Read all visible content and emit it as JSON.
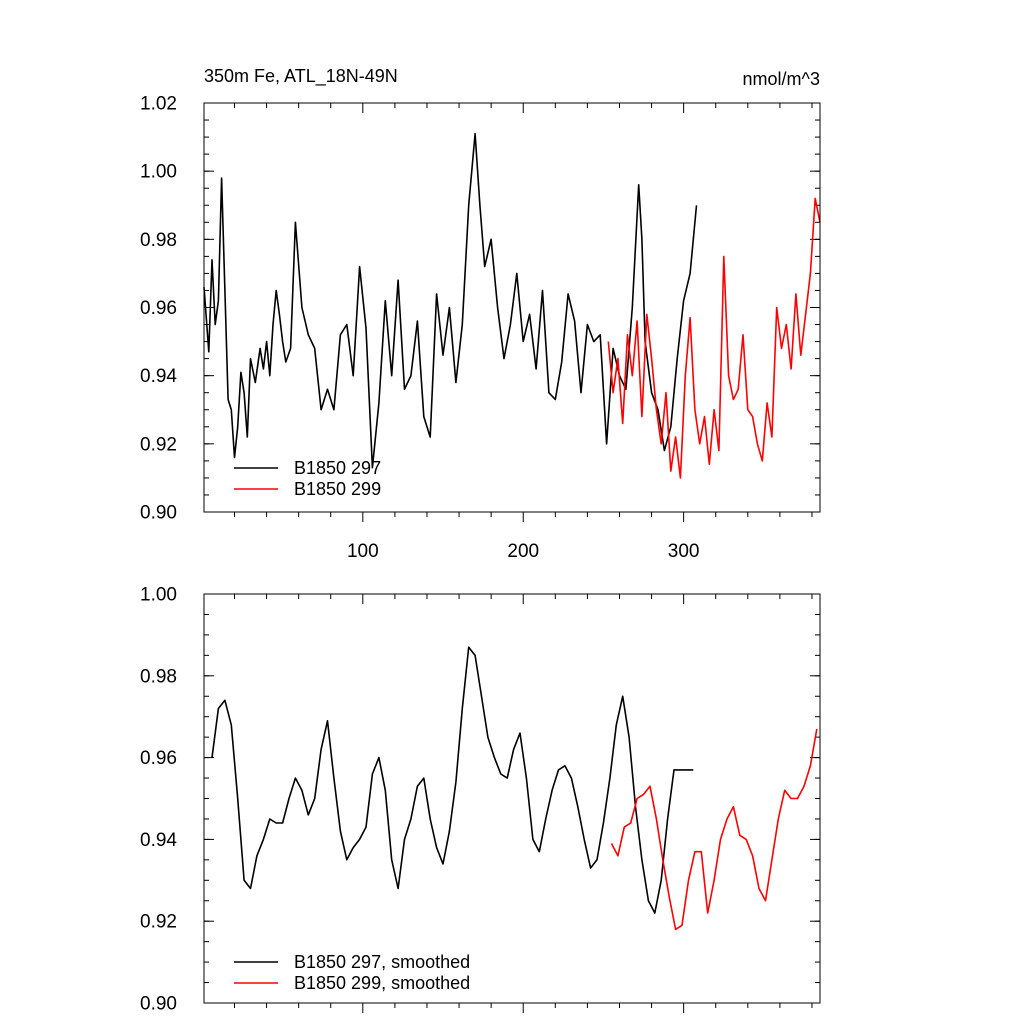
{
  "chart_data": [
    {
      "type": "line",
      "title": "350m Fe, ATL_18N-49N",
      "units": "nmol/m^3",
      "xlim": [
        1,
        385
      ],
      "ylim": [
        0.9,
        1.02
      ],
      "xticks": [
        100,
        200,
        300
      ],
      "yticks": [
        "0.90",
        "0.92",
        "0.94",
        "0.96",
        "0.98",
        "1.00",
        "1.02"
      ],
      "legend_position": "bottom-left",
      "series": [
        {
          "name": "B1850 297",
          "color": "#000000",
          "x": [
            1,
            4,
            6,
            8,
            10,
            12,
            14,
            16,
            18,
            20,
            22,
            24,
            26,
            28,
            30,
            33,
            36,
            38,
            40,
            42,
            44,
            46,
            48,
            50,
            52,
            55,
            58,
            62,
            66,
            70,
            74,
            78,
            82,
            86,
            90,
            94,
            98,
            102,
            106,
            110,
            114,
            118,
            122,
            126,
            130,
            134,
            138,
            142,
            146,
            150,
            154,
            158,
            162,
            166,
            170,
            173,
            176,
            180,
            184,
            188,
            192,
            196,
            200,
            204,
            208,
            212,
            216,
            220,
            224,
            228,
            232,
            236,
            240,
            244,
            248,
            252,
            256,
            260,
            264,
            268,
            272,
            274,
            276,
            280,
            284,
            288,
            292,
            296,
            300,
            304,
            308
          ],
          "y": [
            0.966,
            0.947,
            0.974,
            0.955,
            0.962,
            0.998,
            0.965,
            0.933,
            0.93,
            0.916,
            0.925,
            0.941,
            0.935,
            0.922,
            0.945,
            0.938,
            0.948,
            0.942,
            0.95,
            0.94,
            0.955,
            0.965,
            0.958,
            0.95,
            0.944,
            0.948,
            0.985,
            0.96,
            0.952,
            0.948,
            0.93,
            0.936,
            0.93,
            0.952,
            0.955,
            0.94,
            0.972,
            0.954,
            0.913,
            0.932,
            0.962,
            0.94,
            0.968,
            0.936,
            0.94,
            0.956,
            0.928,
            0.922,
            0.964,
            0.946,
            0.96,
            0.938,
            0.955,
            0.99,
            1.011,
            0.99,
            0.972,
            0.98,
            0.96,
            0.945,
            0.955,
            0.97,
            0.95,
            0.958,
            0.942,
            0.965,
            0.935,
            0.933,
            0.944,
            0.964,
            0.956,
            0.935,
            0.955,
            0.95,
            0.952,
            0.92,
            0.948,
            0.94,
            0.936,
            0.96,
            0.996,
            0.98,
            0.95,
            0.935,
            0.93,
            0.918,
            0.925,
            0.945,
            0.962,
            0.97,
            0.99
          ]
        },
        {
          "name": "B1850 299",
          "color": "#ff0000",
          "x": [
            253,
            256,
            259,
            262,
            265,
            268,
            271,
            274,
            277,
            280,
            283,
            286,
            289,
            292,
            295,
            298,
            301,
            304,
            307,
            310,
            313,
            316,
            319,
            322,
            325,
            328,
            331,
            334,
            337,
            340,
            343,
            346,
            349,
            352,
            355,
            358,
            361,
            364,
            367,
            370,
            373,
            376,
            379,
            382,
            385
          ],
          "y": [
            0.95,
            0.935,
            0.945,
            0.926,
            0.952,
            0.94,
            0.956,
            0.928,
            0.958,
            0.945,
            0.93,
            0.92,
            0.935,
            0.912,
            0.922,
            0.91,
            0.94,
            0.957,
            0.93,
            0.92,
            0.928,
            0.914,
            0.93,
            0.918,
            0.975,
            0.94,
            0.933,
            0.936,
            0.952,
            0.93,
            0.928,
            0.92,
            0.915,
            0.932,
            0.922,
            0.96,
            0.948,
            0.955,
            0.942,
            0.964,
            0.946,
            0.958,
            0.97,
            0.992,
            0.985
          ]
        }
      ]
    },
    {
      "type": "line",
      "xlim": [
        1,
        385
      ],
      "ylim": [
        0.9,
        1.0
      ],
      "yticks": [
        "0.90",
        "0.92",
        "0.94",
        "0.96",
        "0.98",
        "1.00"
      ],
      "legend_position": "bottom-left",
      "series": [
        {
          "name": "B1850 297, smoothed",
          "color": "#000000",
          "x": [
            6,
            10,
            14,
            18,
            22,
            26,
            30,
            34,
            38,
            42,
            46,
            50,
            54,
            58,
            62,
            66,
            70,
            74,
            78,
            82,
            86,
            90,
            94,
            98,
            102,
            106,
            110,
            114,
            118,
            122,
            126,
            130,
            134,
            138,
            142,
            146,
            150,
            154,
            158,
            162,
            166,
            170,
            174,
            178,
            182,
            186,
            190,
            194,
            198,
            202,
            206,
            210,
            214,
            218,
            222,
            226,
            230,
            234,
            238,
            242,
            246,
            250,
            254,
            258,
            262,
            266,
            270,
            274,
            278,
            282,
            286,
            290,
            294,
            298,
            302,
            306
          ],
          "y": [
            0.96,
            0.972,
            0.974,
            0.968,
            0.95,
            0.93,
            0.928,
            0.936,
            0.94,
            0.945,
            0.944,
            0.944,
            0.95,
            0.955,
            0.952,
            0.946,
            0.95,
            0.962,
            0.969,
            0.955,
            0.942,
            0.935,
            0.938,
            0.94,
            0.943,
            0.956,
            0.96,
            0.952,
            0.935,
            0.928,
            0.94,
            0.945,
            0.953,
            0.955,
            0.945,
            0.938,
            0.934,
            0.942,
            0.954,
            0.972,
            0.987,
            0.985,
            0.975,
            0.965,
            0.96,
            0.956,
            0.955,
            0.962,
            0.966,
            0.955,
            0.94,
            0.937,
            0.945,
            0.952,
            0.957,
            0.958,
            0.955,
            0.948,
            0.94,
            0.933,
            0.935,
            0.944,
            0.955,
            0.968,
            0.975,
            0.965,
            0.948,
            0.935,
            0.925,
            0.922,
            0.93,
            0.945,
            0.957,
            0.957,
            0.957,
            0.957
          ]
        },
        {
          "name": "B1850 299, smoothed",
          "color": "#ff0000",
          "x": [
            255,
            259,
            263,
            267,
            271,
            275,
            279,
            283,
            287,
            291,
            295,
            299,
            303,
            307,
            311,
            315,
            319,
            323,
            327,
            331,
            335,
            339,
            343,
            347,
            351,
            355,
            359,
            363,
            367,
            371,
            375,
            379,
            383
          ],
          "y": [
            0.939,
            0.936,
            0.943,
            0.944,
            0.95,
            0.951,
            0.953,
            0.945,
            0.935,
            0.926,
            0.918,
            0.919,
            0.93,
            0.937,
            0.937,
            0.922,
            0.93,
            0.94,
            0.945,
            0.948,
            0.941,
            0.94,
            0.936,
            0.928,
            0.925,
            0.935,
            0.945,
            0.952,
            0.95,
            0.95,
            0.953,
            0.958,
            0.967
          ]
        }
      ]
    }
  ]
}
